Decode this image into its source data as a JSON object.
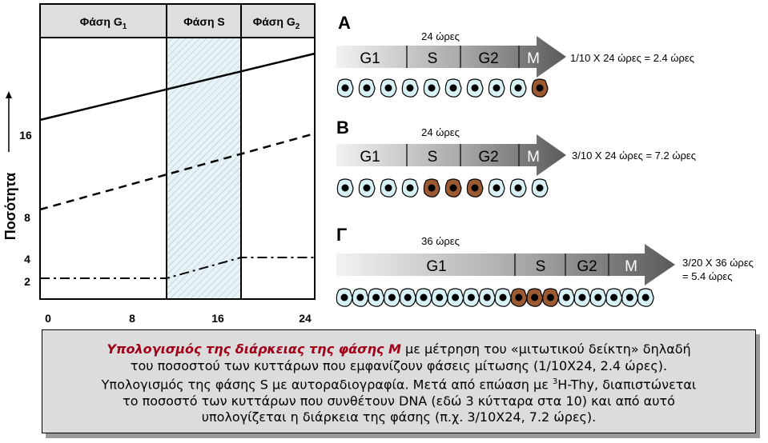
{
  "graph": {
    "headers": [
      "Φάση G",
      "Φάση S",
      "Φάση G"
    ],
    "header_subs": [
      "1",
      "",
      "2"
    ],
    "y_label": "Ποσότητα",
    "y_ticks": [
      "16",
      "8",
      "4",
      "2"
    ],
    "x_ticks": [
      "0",
      "8",
      "16",
      "24"
    ]
  },
  "panels": [
    {
      "letter": "A",
      "total": "24 ώρες",
      "segments": [
        "G1",
        "S",
        "G2",
        "M"
      ],
      "calc": "1/10 X 24 ώρες = 2.4 ώρες",
      "cells": [
        "c",
        "c",
        "c",
        "c",
        "c",
        "c",
        "c",
        "c",
        "c",
        "b"
      ]
    },
    {
      "letter": "B",
      "total": "24 ώρες",
      "segments": [
        "G1",
        "S",
        "G2",
        "M"
      ],
      "calc": "3/10 X 24 ώρες = 7.2 ώρες",
      "cells": [
        "c",
        "c",
        "c",
        "c",
        "b",
        "b",
        "b",
        "c",
        "c",
        "c"
      ]
    },
    {
      "letter": "Γ",
      "total": "36 ώρες",
      "segments": [
        "G1",
        "S",
        "G2",
        "M"
      ],
      "calc_line1": "3/20 X 36 ώρες",
      "calc_line2": "= 5.4 ώρες",
      "cells": [
        "c",
        "c",
        "c",
        "c",
        "c",
        "c",
        "c",
        "c",
        "c",
        "c",
        "c",
        "b",
        "b",
        "b",
        "c",
        "c",
        "c",
        "c",
        "c",
        "c"
      ]
    }
  ],
  "caption": {
    "l1_em": "Υπολογισμός της διάρκειας της φάσης Μ",
    "l1_rest": " με μέτρηση του «μιτωτικού δείκτη» δηλαδή",
    "l2": "του ποσοστού των κυττάρων που εμφανίζουν φάσεις μίτωσης (1/10Χ24, 2.4 ώρες).",
    "l3": "Υπολογισμός της φάσης S με αυτοραδιογραφία.",
    "l4a": "Μετά από επώαση με ",
    "l4sup": "3",
    "l4b": "H-Thy, διαπιστώνεται",
    "l5": "το ποσοστό των κυττάρων που συνθέτουν DNA (εδώ 3 κύτταρα στα 10) και από αυτό",
    "l6": "υπολογίζεται η διάρκεια της φάσης (π.χ. 3/10Χ24, 7.2 ώρες)."
  },
  "colors": {
    "cyan_cell": "#d8f1f5",
    "brown_cell": "#9b5a32",
    "caption_bg": "#dcdcdc",
    "caption_em": "#a00018",
    "arrow_dark": "#5a5a5a"
  }
}
